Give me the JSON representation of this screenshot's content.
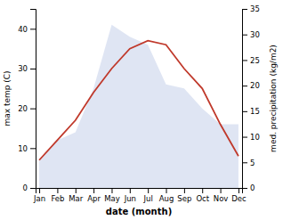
{
  "chart_data": {
    "type": "line",
    "categories": [
      "Jan",
      "Feb",
      "Mar",
      "Apr",
      "May",
      "Jun",
      "Jul",
      "Aug",
      "Sep",
      "Oct",
      "Nov",
      "Dec"
    ],
    "series": [
      {
        "type": "area",
        "color": "#c5d0ea",
        "values": [
          7,
          12,
          14,
          25,
          41,
          38,
          36,
          26,
          25,
          20,
          16,
          16
        ]
      },
      {
        "type": "line",
        "color": "#c0392b",
        "values": [
          7,
          12,
          17,
          24,
          30,
          35,
          37,
          36,
          30,
          25,
          16,
          8
        ]
      }
    ],
    "xlabel": "date (month)",
    "ylabel": "max temp (C)",
    "y2label": "med. precipitation (kg/m2)",
    "ylim": [
      0,
      45
    ],
    "yticks": [
      0,
      10,
      20,
      30,
      40
    ],
    "y2lim": [
      0,
      35
    ],
    "y2ticks": [
      0,
      5,
      10,
      15,
      20,
      25,
      30,
      35
    ],
    "grid": false
  }
}
